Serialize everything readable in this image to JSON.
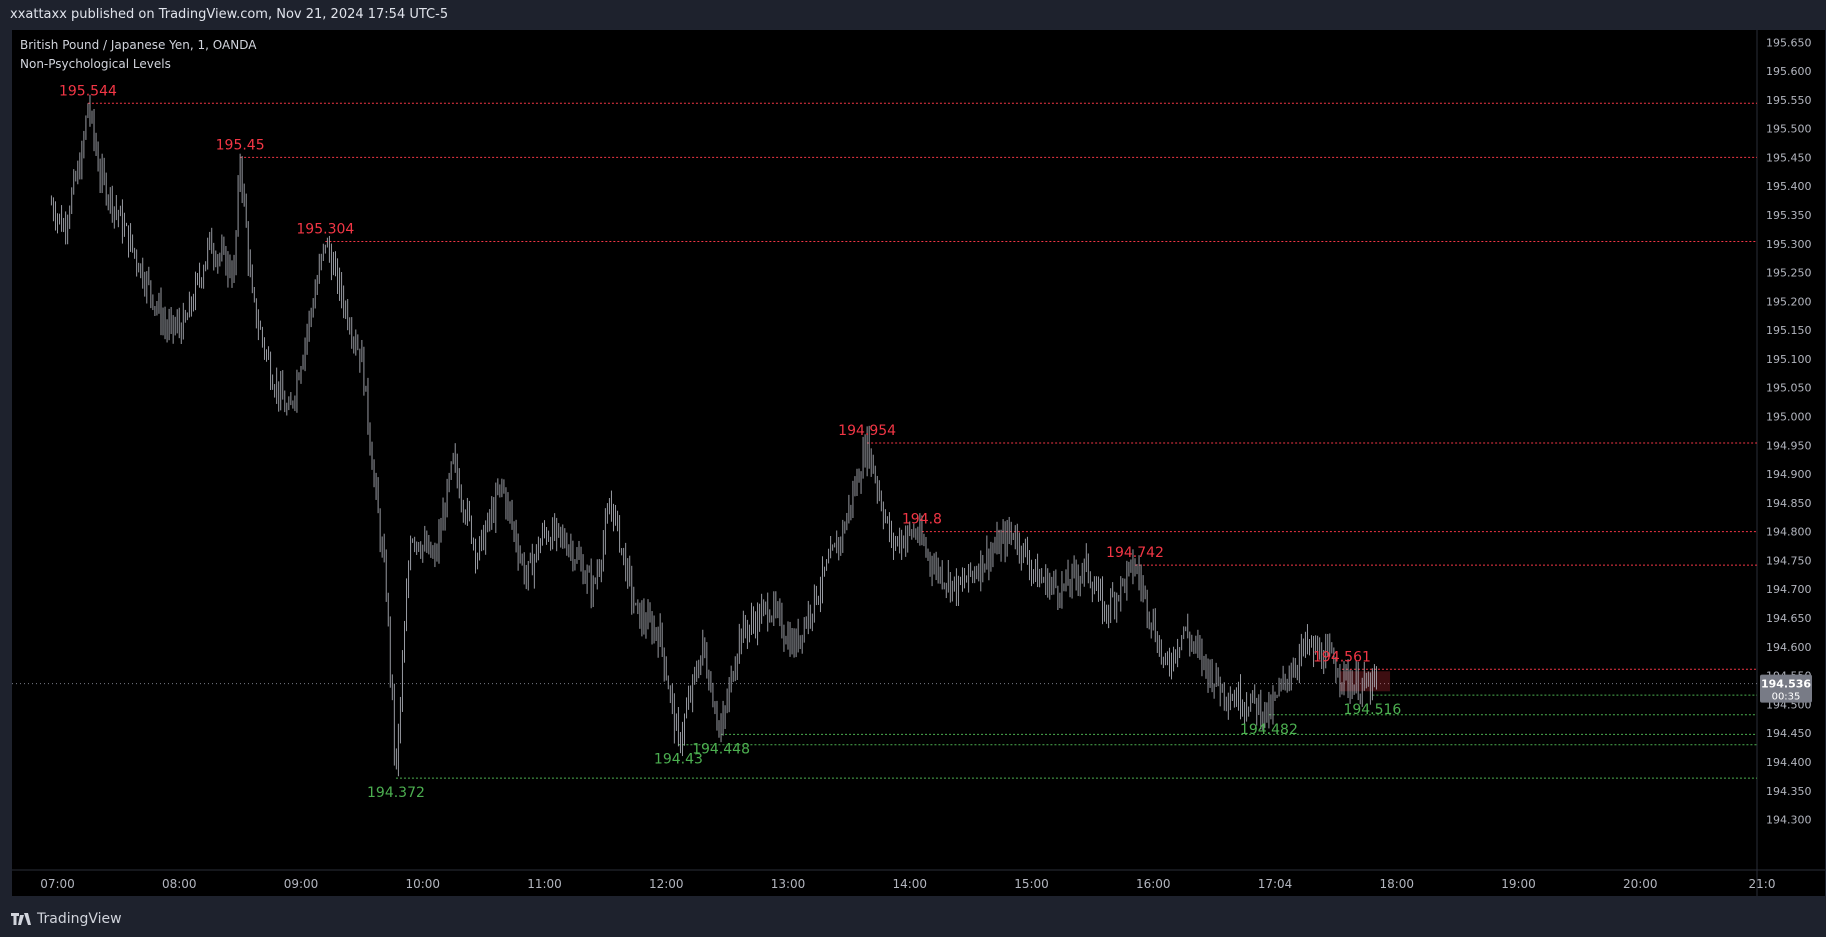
{
  "header": {
    "published_text": "xxattaxx published on TradingView.com, Nov 21, 2024 17:54 UTC-5"
  },
  "legend": {
    "symbol": "British Pound / Japanese Yen, 1, OANDA",
    "indicator": "Non-Psychological Levels"
  },
  "footer": {
    "brand": "TradingView"
  },
  "colors": {
    "background": "#000000",
    "frame": "#1e222d",
    "resistance": "#f23645",
    "support": "#4caf50",
    "candles": "#b2b5be"
  },
  "chart_data": {
    "type": "line",
    "series": [],
    "y_axis": {
      "ticks": [
        "194.300",
        "194.350",
        "194.400",
        "194.450",
        "194.500",
        "194.550",
        "194.600",
        "194.650",
        "194.700",
        "194.750",
        "194.800",
        "194.850",
        "194.900",
        "194.950",
        "195.000",
        "195.050",
        "195.100",
        "195.150",
        "195.200",
        "195.250",
        "195.300",
        "195.350",
        "195.400",
        "195.450",
        "195.500",
        "195.550",
        "195.600",
        "195.650"
      ],
      "range": [
        194.27,
        195.66
      ]
    },
    "x_axis": {
      "ticks": [
        "07:00",
        "08:00",
        "09:00",
        "10:00",
        "11:00",
        "12:00",
        "13:00",
        "14:00",
        "15:00",
        "16:00",
        "17:04",
        "18:00",
        "19:00",
        "20:00",
        "21:0"
      ]
    },
    "price_path": [
      [
        6.95,
        195.37
      ],
      [
        7.05,
        195.33
      ],
      [
        7.2,
        195.45
      ],
      [
        7.25,
        195.544
      ],
      [
        7.35,
        195.42
      ],
      [
        7.5,
        195.35
      ],
      [
        7.7,
        195.25
      ],
      [
        7.9,
        195.15
      ],
      [
        8.05,
        195.16
      ],
      [
        8.25,
        195.3
      ],
      [
        8.45,
        195.25
      ],
      [
        8.5,
        195.45
      ],
      [
        8.6,
        195.2
      ],
      [
        8.75,
        195.08
      ],
      [
        8.9,
        195.0
      ],
      [
        9.05,
        195.15
      ],
      [
        9.2,
        195.304
      ],
      [
        9.35,
        195.2
      ],
      [
        9.5,
        195.1
      ],
      [
        9.62,
        194.85
      ],
      [
        9.7,
        194.7
      ],
      [
        9.78,
        194.372
      ],
      [
        9.9,
        194.8
      ],
      [
        10.1,
        194.75
      ],
      [
        10.25,
        194.92
      ],
      [
        10.45,
        194.76
      ],
      [
        10.65,
        194.88
      ],
      [
        10.85,
        194.72
      ],
      [
        11.0,
        194.8
      ],
      [
        11.2,
        194.78
      ],
      [
        11.4,
        194.7
      ],
      [
        11.55,
        194.85
      ],
      [
        11.75,
        194.66
      ],
      [
        11.95,
        194.62
      ],
      [
        12.1,
        194.43
      ],
      [
        12.3,
        194.6
      ],
      [
        12.45,
        194.448
      ],
      [
        12.6,
        194.62
      ],
      [
        12.85,
        194.67
      ],
      [
        13.05,
        194.6
      ],
      [
        13.25,
        194.7
      ],
      [
        13.45,
        194.8
      ],
      [
        13.65,
        194.954
      ],
      [
        13.85,
        194.78
      ],
      [
        14.05,
        194.8
      ],
      [
        14.2,
        194.74
      ],
      [
        14.4,
        194.7
      ],
      [
        14.6,
        194.75
      ],
      [
        14.85,
        194.8
      ],
      [
        15.05,
        194.72
      ],
      [
        15.25,
        194.7
      ],
      [
        15.45,
        194.74
      ],
      [
        15.6,
        194.66
      ],
      [
        15.72,
        194.7
      ],
      [
        15.85,
        194.742
      ],
      [
        16.0,
        194.64
      ],
      [
        16.1,
        194.56
      ],
      [
        16.25,
        194.63
      ],
      [
        16.45,
        194.56
      ],
      [
        16.6,
        194.52
      ],
      [
        16.85,
        194.5
      ],
      [
        16.95,
        194.482
      ],
      [
        17.1,
        194.55
      ],
      [
        17.25,
        194.6
      ],
      [
        17.45,
        194.58
      ],
      [
        17.6,
        194.54
      ],
      [
        17.75,
        194.53
      ],
      [
        17.85,
        194.536
      ]
    ],
    "resistance_levels": [
      {
        "value": 195.544,
        "label": "195.544",
        "start_time": 7.25
      },
      {
        "value": 195.45,
        "label": "195.45",
        "start_time": 8.5
      },
      {
        "value": 195.304,
        "label": "195.304",
        "start_time": 9.2
      },
      {
        "value": 194.954,
        "label": "194.954",
        "start_time": 13.65
      },
      {
        "value": 194.8,
        "label": "194.8",
        "start_time": 14.1
      },
      {
        "value": 194.742,
        "label": "194.742",
        "start_time": 15.85
      },
      {
        "value": 194.561,
        "label": "194.561",
        "start_time": 17.55
      }
    ],
    "support_levels": [
      {
        "value": 194.372,
        "label": "194.372",
        "start_time": 9.78
      },
      {
        "value": 194.43,
        "label": "194.43",
        "start_time": 12.1
      },
      {
        "value": 194.448,
        "label": "194.448",
        "start_time": 12.45
      },
      {
        "value": 194.482,
        "label": "194.482",
        "start_time": 16.95
      },
      {
        "value": 194.516,
        "label": "194.516",
        "start_time": 17.8
      }
    ],
    "current_price": {
      "value": 194.536,
      "label": "194.536",
      "countdown": "00:35"
    }
  }
}
